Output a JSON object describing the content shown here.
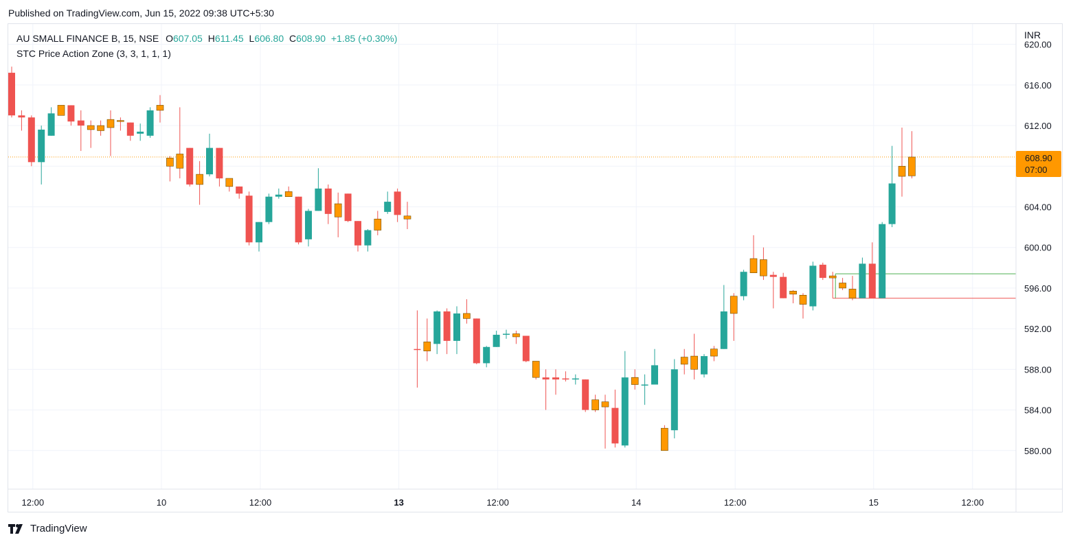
{
  "published": "Published on TradingView.com, Jun 15, 2022 09:38 UTC+5:30",
  "legend": {
    "symbol": "AU SMALL FINANCE B, 15, NSE",
    "open_label": "O",
    "open": "607.05",
    "high_label": "H",
    "high": "611.45",
    "low_label": "L",
    "low": "606.80",
    "close_label": "C",
    "close": "608.90",
    "change": "+1.85 (+0.30%)",
    "indicator": "STC Price Action Zone (3, 3, 1, 1, 1)"
  },
  "currency": "INR",
  "last_price_tag": {
    "price": "608.90",
    "countdown": "07:00"
  },
  "footer": {
    "brand": "TradingView",
    "logo_icon": "tradingview-logo-icon"
  },
  "colors": {
    "bull": "#26a69a",
    "bear": "#ef5350",
    "zone": "#ff9800",
    "grid": "#f0f3fa",
    "axis_text": "#131722"
  },
  "chart_data": {
    "type": "candlestick",
    "ylim": [
      576,
      622
    ],
    "y_ticks": [
      580,
      584,
      588,
      592,
      596,
      600,
      604,
      608,
      612,
      616,
      620
    ],
    "x_ticks": [
      {
        "label": "12:00",
        "bar": 2,
        "bold": false
      },
      {
        "label": "10",
        "bar": 15,
        "bold": false
      },
      {
        "label": "12:00",
        "bar": 25,
        "bold": false
      },
      {
        "label": "13",
        "bar": 39,
        "bold": true
      },
      {
        "label": "12:00",
        "bar": 49,
        "bold": false
      },
      {
        "label": "14",
        "bar": 63,
        "bold": false
      },
      {
        "label": "12:00",
        "bar": 73,
        "bold": false
      },
      {
        "label": "15",
        "bar": 87,
        "bold": false
      },
      {
        "label": "12:00",
        "bar": 97,
        "bold": false
      }
    ],
    "last_price": 608.9,
    "support_line": {
      "value": 595.0,
      "from_bar": 83
    },
    "resistance_line": {
      "value": 597.4,
      "from_bar": 83
    },
    "candles": [
      {
        "o": 617.2,
        "h": 617.8,
        "l": 612.8,
        "c": 613.0,
        "z": "bear"
      },
      {
        "o": 613.0,
        "h": 613.5,
        "l": 611.5,
        "c": 612.8,
        "z": "bear"
      },
      {
        "o": 612.8,
        "h": 613.0,
        "l": 608.0,
        "c": 608.4,
        "z": "bear"
      },
      {
        "o": 608.4,
        "h": 612.0,
        "l": 606.2,
        "c": 611.6,
        "z": "bull"
      },
      {
        "o": 611.0,
        "h": 613.8,
        "l": 611.0,
        "c": 613.2,
        "z": "bull"
      },
      {
        "o": 613.0,
        "h": 614.0,
        "l": 613.0,
        "c": 614.0,
        "z": "zone"
      },
      {
        "o": 614.0,
        "h": 614.0,
        "l": 612.0,
        "c": 612.4,
        "z": "bear"
      },
      {
        "o": 612.5,
        "h": 613.5,
        "l": 609.5,
        "c": 612.0,
        "z": "bear"
      },
      {
        "o": 612.0,
        "h": 612.5,
        "l": 609.8,
        "c": 611.6,
        "z": "zone"
      },
      {
        "o": 611.5,
        "h": 612.5,
        "l": 611.0,
        "c": 612.0,
        "z": "zone"
      },
      {
        "o": 611.8,
        "h": 613.5,
        "l": 609.0,
        "c": 612.6,
        "z": "zone"
      },
      {
        "o": 612.5,
        "h": 612.8,
        "l": 611.5,
        "c": 612.5,
        "z": "zone"
      },
      {
        "o": 612.3,
        "h": 612.3,
        "l": 610.5,
        "c": 611.0,
        "z": "bear"
      },
      {
        "o": 611.2,
        "h": 612.2,
        "l": 610.5,
        "c": 611.4,
        "z": "bull"
      },
      {
        "o": 611.0,
        "h": 613.8,
        "l": 610.8,
        "c": 613.5,
        "z": "bull"
      },
      {
        "o": 613.5,
        "h": 615.0,
        "l": 612.3,
        "c": 614.0,
        "z": "zone"
      },
      {
        "o": 608.8,
        "h": 609.0,
        "l": 606.5,
        "c": 608.0,
        "z": "zone"
      },
      {
        "o": 607.8,
        "h": 613.8,
        "l": 606.8,
        "c": 609.2,
        "z": "zone"
      },
      {
        "o": 609.8,
        "h": 609.8,
        "l": 606.0,
        "c": 606.2,
        "z": "bear"
      },
      {
        "o": 606.2,
        "h": 608.5,
        "l": 604.2,
        "c": 607.2,
        "z": "zone"
      },
      {
        "o": 607.2,
        "h": 611.2,
        "l": 607.0,
        "c": 609.8,
        "z": "bull"
      },
      {
        "o": 609.8,
        "h": 609.8,
        "l": 606.0,
        "c": 606.8,
        "z": "bear"
      },
      {
        "o": 606.8,
        "h": 606.8,
        "l": 605.5,
        "c": 606.0,
        "z": "zone"
      },
      {
        "o": 606.0,
        "h": 606.0,
        "l": 604.8,
        "c": 605.3,
        "z": "bear"
      },
      {
        "o": 605.1,
        "h": 605.5,
        "l": 600.2,
        "c": 600.5,
        "z": "bear"
      },
      {
        "o": 600.5,
        "h": 602.5,
        "l": 599.6,
        "c": 602.5,
        "z": "bull"
      },
      {
        "o": 602.5,
        "h": 605.3,
        "l": 602.3,
        "c": 605.0,
        "z": "bull"
      },
      {
        "o": 605.0,
        "h": 605.8,
        "l": 604.8,
        "c": 605.2,
        "z": "bull"
      },
      {
        "o": 605.5,
        "h": 606.0,
        "l": 605.0,
        "c": 605.0,
        "z": "zone"
      },
      {
        "o": 605.0,
        "h": 605.0,
        "l": 600.3,
        "c": 600.5,
        "z": "bear"
      },
      {
        "o": 600.8,
        "h": 603.8,
        "l": 600.1,
        "c": 603.6,
        "z": "bull"
      },
      {
        "o": 603.6,
        "h": 607.8,
        "l": 603.6,
        "c": 605.8,
        "z": "bull"
      },
      {
        "o": 605.8,
        "h": 606.2,
        "l": 602.3,
        "c": 603.3,
        "z": "bear"
      },
      {
        "o": 604.3,
        "h": 605.4,
        "l": 601.0,
        "c": 603.0,
        "z": "zone"
      },
      {
        "o": 605.3,
        "h": 605.3,
        "l": 602.5,
        "c": 602.6,
        "z": "bear"
      },
      {
        "o": 602.6,
        "h": 602.6,
        "l": 599.6,
        "c": 600.2,
        "z": "bear"
      },
      {
        "o": 600.2,
        "h": 601.8,
        "l": 599.6,
        "c": 601.7,
        "z": "bull"
      },
      {
        "o": 601.7,
        "h": 603.6,
        "l": 601.2,
        "c": 602.8,
        "z": "zone"
      },
      {
        "o": 603.5,
        "h": 605.5,
        "l": 603.3,
        "c": 604.5,
        "z": "bull"
      },
      {
        "o": 605.5,
        "h": 605.8,
        "l": 602.5,
        "c": 603.2,
        "z": "bear"
      },
      {
        "o": 603.1,
        "h": 604.5,
        "l": 601.8,
        "c": 602.8,
        "z": "zone"
      },
      {
        "o": 590.0,
        "h": 593.8,
        "l": 586.2,
        "c": 590.0,
        "z": "bear"
      },
      {
        "o": 589.8,
        "h": 593.0,
        "l": 588.8,
        "c": 590.7,
        "z": "zone"
      },
      {
        "o": 590.5,
        "h": 593.8,
        "l": 589.5,
        "c": 593.7,
        "z": "bull"
      },
      {
        "o": 593.7,
        "h": 594.0,
        "l": 589.5,
        "c": 590.8,
        "z": "bear"
      },
      {
        "o": 590.8,
        "h": 594.2,
        "l": 589.5,
        "c": 593.5,
        "z": "bull"
      },
      {
        "o": 593.5,
        "h": 594.9,
        "l": 592.5,
        "c": 593.0,
        "z": "zone"
      },
      {
        "o": 593.0,
        "h": 593.0,
        "l": 588.5,
        "c": 588.6,
        "z": "bear"
      },
      {
        "o": 588.6,
        "h": 590.3,
        "l": 588.2,
        "c": 590.2,
        "z": "bull"
      },
      {
        "o": 590.2,
        "h": 591.8,
        "l": 590.2,
        "c": 591.4,
        "z": "bull"
      },
      {
        "o": 591.4,
        "h": 591.9,
        "l": 591.0,
        "c": 591.5,
        "z": "bull"
      },
      {
        "o": 591.5,
        "h": 591.8,
        "l": 590.5,
        "c": 591.2,
        "z": "zone"
      },
      {
        "o": 591.3,
        "h": 591.3,
        "l": 588.7,
        "c": 588.8,
        "z": "bear"
      },
      {
        "o": 588.8,
        "h": 588.8,
        "l": 587.0,
        "c": 587.2,
        "z": "zone"
      },
      {
        "o": 587.2,
        "h": 588.0,
        "l": 584.0,
        "c": 587.0,
        "z": "bear"
      },
      {
        "o": 587.0,
        "h": 588.0,
        "l": 585.5,
        "c": 587.2,
        "z": "bear"
      },
      {
        "o": 587.0,
        "h": 587.8,
        "l": 586.8,
        "c": 587.1,
        "z": "bear"
      },
      {
        "o": 587.0,
        "h": 587.5,
        "l": 586.5,
        "c": 587.1,
        "z": "bull"
      },
      {
        "o": 587.0,
        "h": 587.0,
        "l": 583.8,
        "c": 584.0,
        "z": "bear"
      },
      {
        "o": 584.0,
        "h": 585.5,
        "l": 583.8,
        "c": 585.0,
        "z": "zone"
      },
      {
        "o": 584.8,
        "h": 585.5,
        "l": 580.2,
        "c": 584.3,
        "z": "zone"
      },
      {
        "o": 584.2,
        "h": 586.0,
        "l": 580.3,
        "c": 580.7,
        "z": "bear"
      },
      {
        "o": 580.5,
        "h": 589.8,
        "l": 580.3,
        "c": 587.2,
        "z": "bull"
      },
      {
        "o": 587.2,
        "h": 588.0,
        "l": 586.0,
        "c": 586.5,
        "z": "zone"
      },
      {
        "o": 586.5,
        "h": 587.5,
        "l": 584.5,
        "c": 586.5,
        "z": "bull"
      },
      {
        "o": 586.5,
        "h": 590.0,
        "l": 586.5,
        "c": 588.4,
        "z": "bull"
      },
      {
        "o": 582.2,
        "h": 582.5,
        "l": 580.0,
        "c": 580.0,
        "z": "zone"
      },
      {
        "o": 582.0,
        "h": 589.0,
        "l": 581.2,
        "c": 588.0,
        "z": "bull"
      },
      {
        "o": 588.5,
        "h": 590.0,
        "l": 587.5,
        "c": 589.2,
        "z": "zone"
      },
      {
        "o": 589.3,
        "h": 591.5,
        "l": 587.0,
        "c": 588.0,
        "z": "zone"
      },
      {
        "o": 587.5,
        "h": 589.5,
        "l": 587.2,
        "c": 589.3,
        "z": "bull"
      },
      {
        "o": 589.3,
        "h": 590.3,
        "l": 588.8,
        "c": 590.0,
        "z": "zone"
      },
      {
        "o": 590.0,
        "h": 596.3,
        "l": 590.0,
        "c": 593.7,
        "z": "bull"
      },
      {
        "o": 593.5,
        "h": 595.5,
        "l": 590.8,
        "c": 595.2,
        "z": "zone"
      },
      {
        "o": 595.2,
        "h": 597.8,
        "l": 594.8,
        "c": 597.6,
        "z": "bull"
      },
      {
        "o": 597.5,
        "h": 601.2,
        "l": 597.5,
        "c": 598.9,
        "z": "zone"
      },
      {
        "o": 598.8,
        "h": 600.0,
        "l": 596.8,
        "c": 597.2,
        "z": "zone"
      },
      {
        "o": 597.3,
        "h": 597.6,
        "l": 594.0,
        "c": 597.1,
        "z": "bear"
      },
      {
        "o": 597.1,
        "h": 597.5,
        "l": 595.0,
        "c": 595.0,
        "z": "bear"
      },
      {
        "o": 595.7,
        "h": 595.8,
        "l": 594.5,
        "c": 595.4,
        "z": "zone"
      },
      {
        "o": 595.3,
        "h": 595.5,
        "l": 593.0,
        "c": 594.4,
        "z": "zone"
      },
      {
        "o": 594.2,
        "h": 598.6,
        "l": 593.8,
        "c": 598.2,
        "z": "bull"
      },
      {
        "o": 598.3,
        "h": 598.5,
        "l": 596.8,
        "c": 597.0,
        "z": "bear"
      },
      {
        "o": 597.0,
        "h": 597.6,
        "l": 595.0,
        "c": 597.2,
        "z": "zone"
      },
      {
        "o": 596.5,
        "h": 597.0,
        "l": 595.8,
        "c": 596.0,
        "z": "zone"
      },
      {
        "o": 595.9,
        "h": 597.2,
        "l": 594.8,
        "c": 595.0,
        "z": "zone"
      },
      {
        "o": 595.0,
        "h": 599.0,
        "l": 595.0,
        "c": 598.4,
        "z": "bull"
      },
      {
        "o": 598.4,
        "h": 600.5,
        "l": 595.0,
        "c": 595.0,
        "z": "bear"
      },
      {
        "o": 595.0,
        "h": 602.5,
        "l": 595.0,
        "c": 602.3,
        "z": "bull"
      },
      {
        "o": 602.3,
        "h": 610.0,
        "l": 602.0,
        "c": 606.3,
        "z": "bull"
      },
      {
        "o": 608.0,
        "h": 611.8,
        "l": 605.0,
        "c": 607.0,
        "z": "zone"
      },
      {
        "o": 607.05,
        "h": 611.45,
        "l": 606.8,
        "c": 608.9,
        "z": "zone"
      }
    ]
  }
}
